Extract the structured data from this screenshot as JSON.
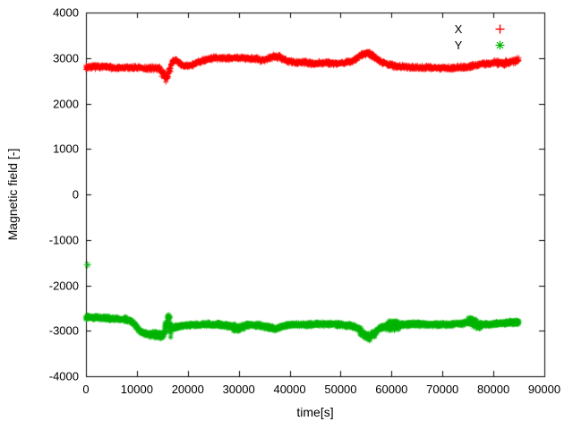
{
  "chart_data": {
    "type": "scatter",
    "title": "",
    "xlabel": "time[s]",
    "ylabel": "Magnetic field [-]",
    "xlim": [
      0,
      90000
    ],
    "ylim": [
      -4000,
      4000
    ],
    "x_ticks": [
      0,
      10000,
      20000,
      30000,
      40000,
      50000,
      60000,
      70000,
      80000,
      90000
    ],
    "y_ticks": [
      -4000,
      -3000,
      -2000,
      -1000,
      0,
      1000,
      2000,
      3000,
      4000
    ],
    "grid": false,
    "legend_position": "top-right-inside",
    "background": "#ffffff",
    "axis_color": "#000000",
    "sample_step": 40,
    "series": [
      {
        "name": "X",
        "color": "#ff0000",
        "marker": "plus",
        "marker_size": 3,
        "noise": 55,
        "noise_regions": [
          {
            "x0": 14800,
            "x1": 16600,
            "amp": 120
          },
          {
            "x0": 36000,
            "x1": 38500,
            "amp": 70
          },
          {
            "x0": 53500,
            "x1": 56500,
            "amp": 70
          },
          {
            "x0": 80000,
            "x1": 85000,
            "amp": 70
          }
        ],
        "waypoints": {
          "x": [
            0,
            3000,
            6000,
            9000,
            12000,
            14500,
            15300,
            15800,
            16300,
            17000,
            17800,
            18800,
            20000,
            21500,
            23000,
            25000,
            28000,
            31000,
            33000,
            34500,
            36000,
            37000,
            38000,
            39500,
            41000,
            43000,
            45000,
            47000,
            49000,
            51000,
            52500,
            53500,
            54500,
            55500,
            56500,
            58000,
            59500,
            61000,
            63000,
            66000,
            69000,
            72000,
            74500,
            76000,
            78000,
            80000,
            82000,
            83500,
            85000
          ],
          "y": [
            2800,
            2810,
            2780,
            2790,
            2770,
            2780,
            2600,
            2550,
            2700,
            2920,
            2950,
            2840,
            2820,
            2880,
            2950,
            3000,
            3000,
            3000,
            2990,
            2950,
            3000,
            3050,
            3020,
            2930,
            2900,
            2900,
            2880,
            2900,
            2880,
            2900,
            2940,
            3020,
            3090,
            3100,
            3030,
            2920,
            2850,
            2820,
            2800,
            2790,
            2780,
            2780,
            2800,
            2830,
            2870,
            2900,
            2880,
            2920,
            2950
          ]
        },
        "outliers": []
      },
      {
        "name": "Y",
        "color": "#00b400",
        "marker": "asterisk",
        "marker_size": 3,
        "noise": 55,
        "noise_regions": [
          {
            "x0": 12500,
            "x1": 15200,
            "amp": 100
          },
          {
            "x0": 15300,
            "x1": 16800,
            "amp": 260
          },
          {
            "x0": 29000,
            "x1": 31000,
            "amp": 90
          },
          {
            "x0": 53800,
            "x1": 56800,
            "amp": 90
          },
          {
            "x0": 58500,
            "x1": 61500,
            "amp": 120
          },
          {
            "x0": 75000,
            "x1": 77500,
            "amp": 110
          }
        ],
        "waypoints": {
          "x": [
            0,
            3000,
            6000,
            8500,
            9500,
            10500,
            11500,
            13000,
            14500,
            15300,
            15800,
            16300,
            17000,
            18000,
            19500,
            21000,
            23000,
            26000,
            28500,
            29500,
            30500,
            32000,
            34000,
            36000,
            37500,
            39000,
            41000,
            44000,
            47000,
            50000,
            52000,
            53500,
            54500,
            55500,
            56500,
            57500,
            59000,
            60000,
            61000,
            63000,
            66000,
            69000,
            72000,
            74000,
            75500,
            76500,
            78000,
            80000,
            82000,
            84000,
            85000
          ],
          "y": [
            -2700,
            -2720,
            -2730,
            -2760,
            -2850,
            -3000,
            -3060,
            -3090,
            -3110,
            -3050,
            -2800,
            -2820,
            -2950,
            -2900,
            -2880,
            -2870,
            -2860,
            -2860,
            -2900,
            -2960,
            -2920,
            -2870,
            -2880,
            -2930,
            -2960,
            -2880,
            -2860,
            -2860,
            -2850,
            -2860,
            -2890,
            -2950,
            -3080,
            -3150,
            -3080,
            -2950,
            -2880,
            -2900,
            -2870,
            -2860,
            -2860,
            -2865,
            -2860,
            -2840,
            -2790,
            -2840,
            -2870,
            -2850,
            -2830,
            -2820,
            -2810
          ]
        },
        "outliers": [
          [
            300,
            -1550
          ]
        ]
      }
    ]
  }
}
